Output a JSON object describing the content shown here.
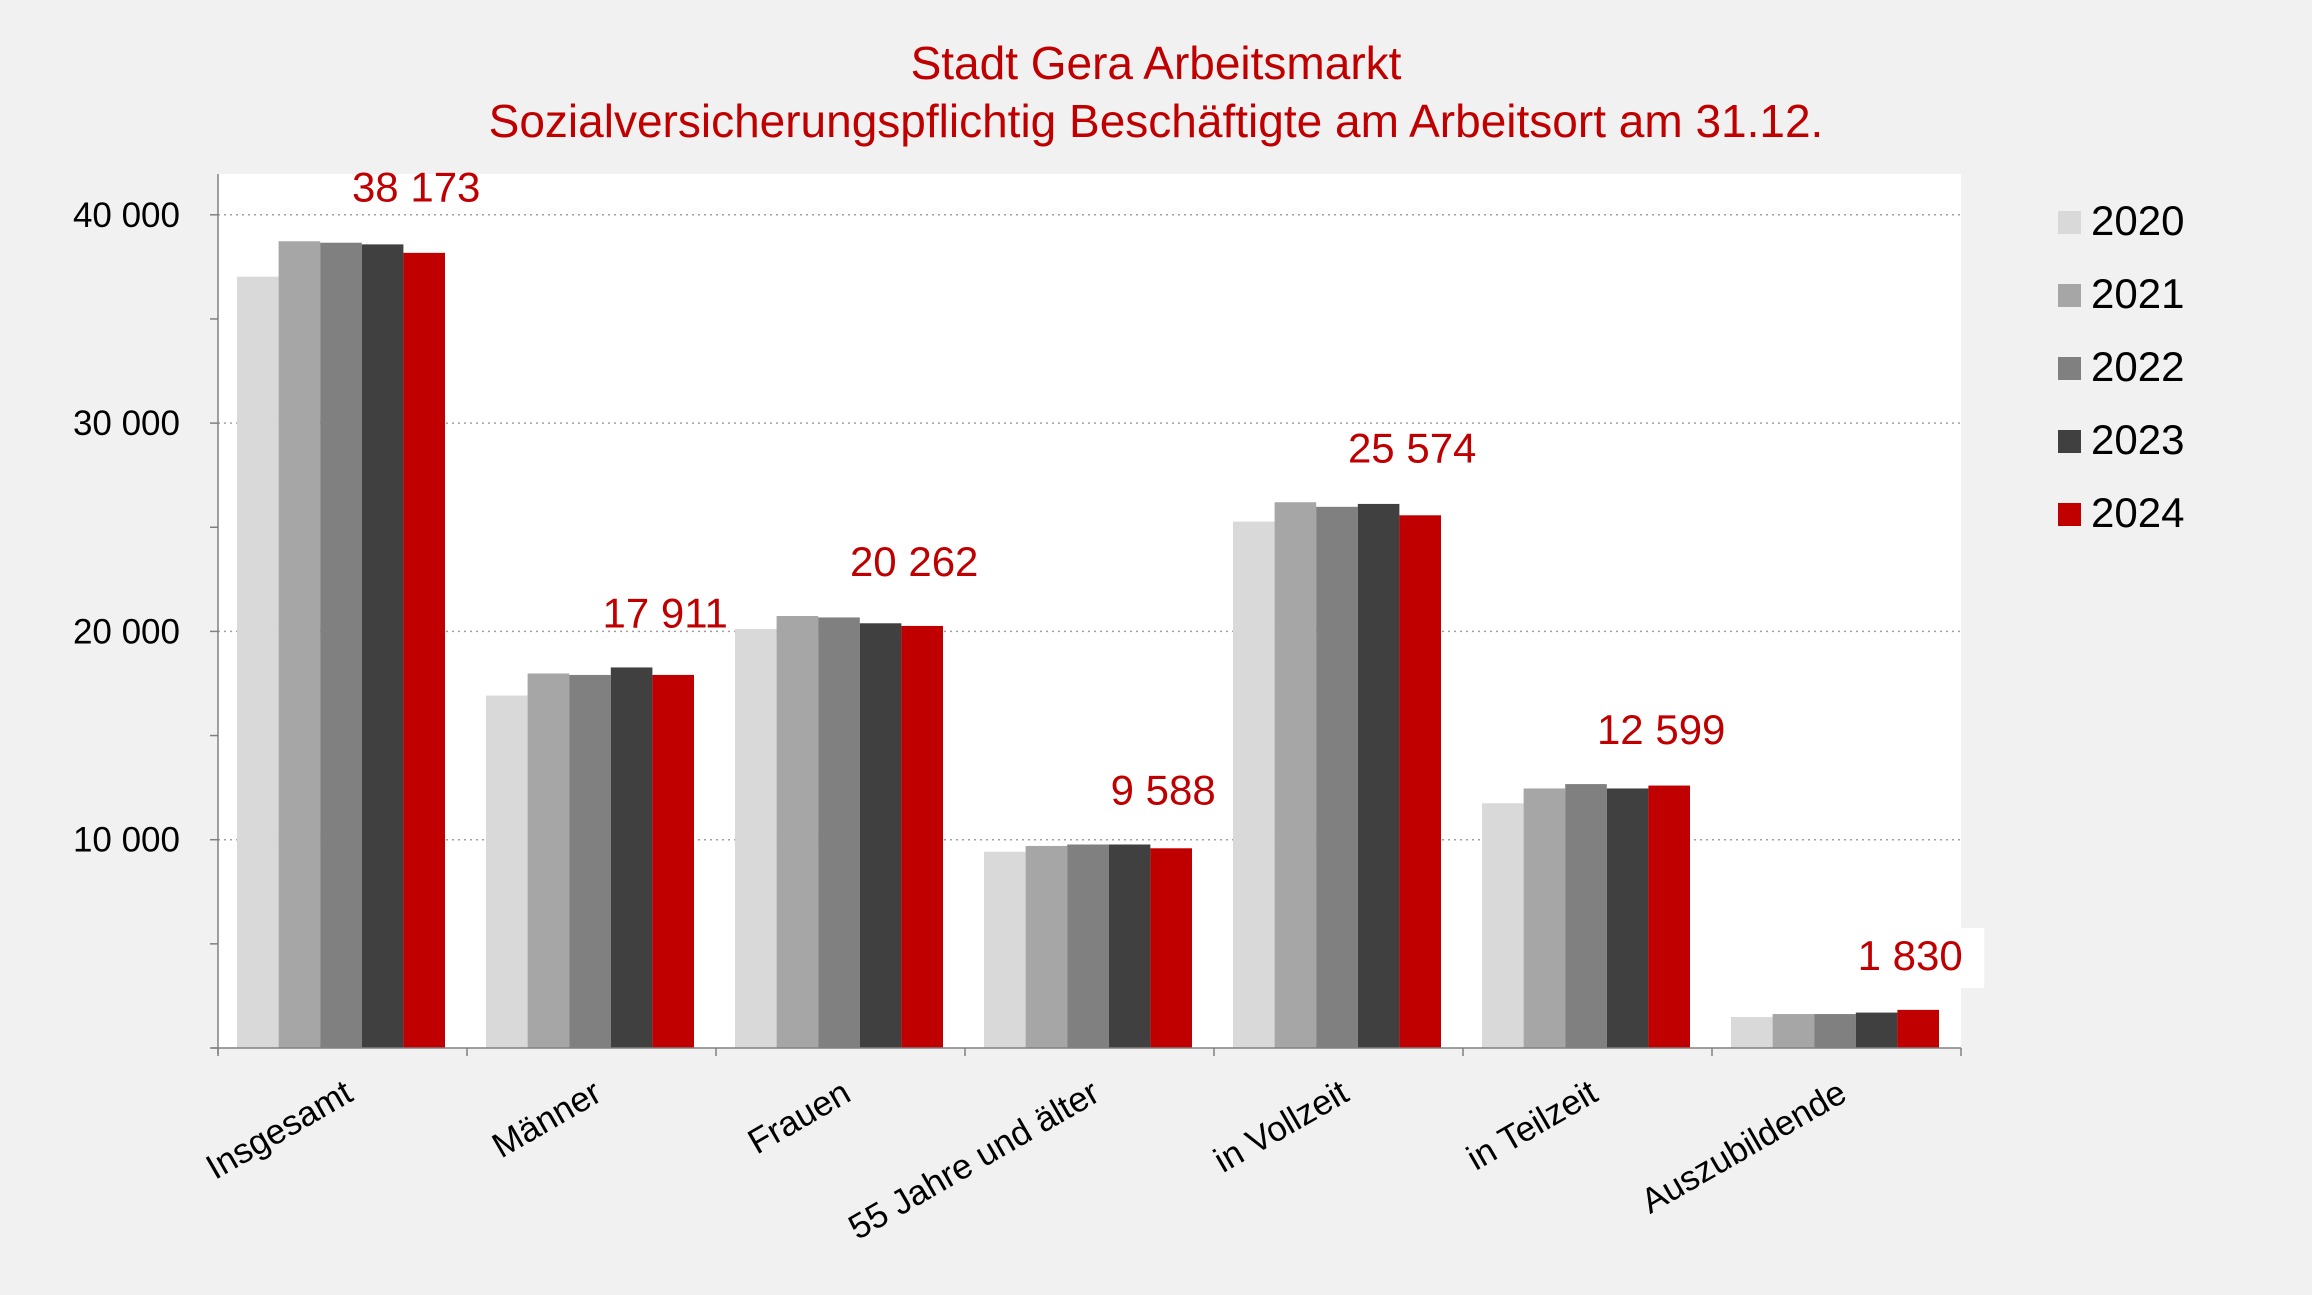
{
  "chart_data": {
    "type": "bar",
    "title": "Stadt Gera Arbeitsmarkt",
    "subtitle": "Sozialversicherungspflichtig Beschäftigte am Arbeitsort am 31.12.",
    "xlabel": "",
    "ylabel": "",
    "ylim": [
      0,
      42000
    ],
    "yticks": [
      10000,
      20000,
      30000,
      40000
    ],
    "ytick_labels": [
      "10 000",
      "20 000",
      "30 000",
      "40 000"
    ],
    "grid": true,
    "legend_position": "right",
    "categories": [
      "Insgesamt",
      "Männer",
      "Frauen",
      "55 Jahre und älter",
      "in Vollzeit",
      "in Teilzeit",
      "Auszubildende"
    ],
    "series": [
      {
        "name": "2020",
        "color": "#d9d9d9",
        "values": [
          37030,
          16920,
          20110,
          9420,
          25270,
          11750,
          1490
        ]
      },
      {
        "name": "2021",
        "color": "#a6a6a6",
        "values": [
          38730,
          17980,
          20740,
          9700,
          26200,
          12460,
          1630
        ]
      },
      {
        "name": "2022",
        "color": "#808080",
        "values": [
          38660,
          17910,
          20670,
          9770,
          25980,
          12670,
          1630
        ]
      },
      {
        "name": "2023",
        "color": "#404040",
        "values": [
          38580,
          18270,
          20390,
          9770,
          26120,
          12460,
          1700
        ]
      },
      {
        "name": "2024",
        "color": "#c00000",
        "values": [
          38173,
          17911,
          20262,
          9588,
          25574,
          12599,
          1830
        ]
      }
    ],
    "data_labels": [
      "38 173",
      "17 911",
      "20 262",
      "9 588",
      "25 574",
      "12 599",
      "1 830"
    ],
    "accent_color": "#c00000"
  }
}
